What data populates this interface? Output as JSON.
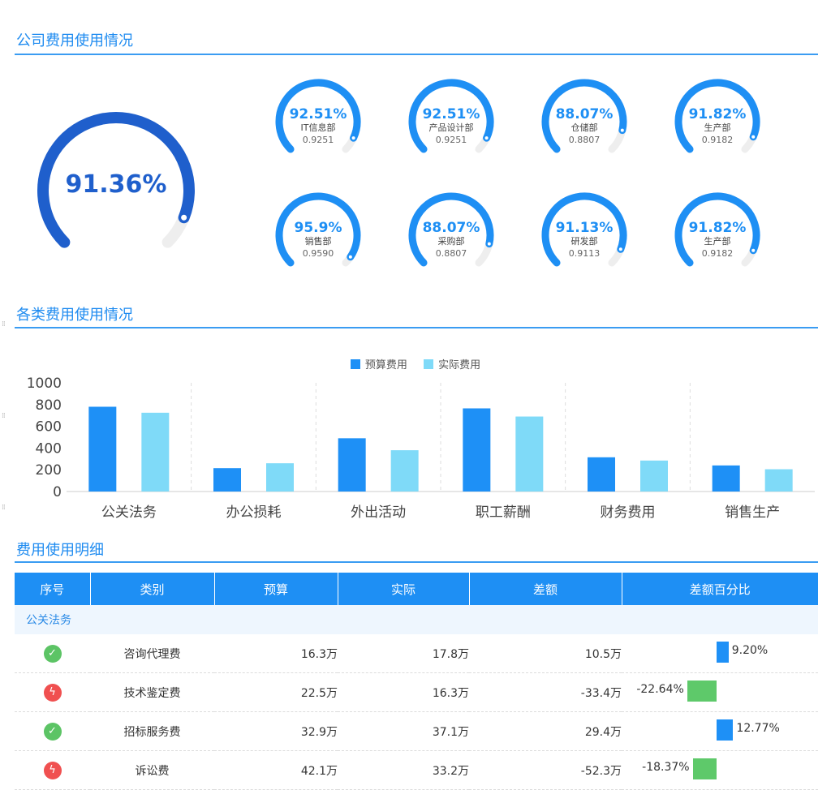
{
  "sections": {
    "company_title": "公司费用使用情况",
    "category_title": "各类费用使用情况",
    "detail_title": "费用使用明细"
  },
  "overall_gauge": {
    "label": "91.36%",
    "value": 0.9136,
    "color": "#1f5fcc"
  },
  "dept_gauges": [
    {
      "pct": "92.51%",
      "dept": "IT信息部",
      "value": "0.9251"
    },
    {
      "pct": "92.51%",
      "dept": "产品设计部",
      "value": "0.9251"
    },
    {
      "pct": "88.07%",
      "dept": "仓储部",
      "value": "0.8807"
    },
    {
      "pct": "91.82%",
      "dept": "生产部",
      "value": "0.9182"
    },
    {
      "pct": "95.9%",
      "dept": "销售部",
      "value": "0.9590"
    },
    {
      "pct": "88.07%",
      "dept": "采购部",
      "value": "0.8807"
    },
    {
      "pct": "91.13%",
      "dept": "研发部",
      "value": "0.9113"
    },
    {
      "pct": "91.82%",
      "dept": "生产部",
      "value": "0.9182"
    }
  ],
  "colors": {
    "accent": "#1e8ff4",
    "gauge_track": "#eeeeee",
    "bar_budget": "#1e90f6",
    "bar_actual": "#7fdaf8",
    "positive": "#1e90f6",
    "negative": "#5ec96a"
  },
  "chart_data": {
    "type": "bar",
    "categories": [
      "公关法务",
      "办公损耗",
      "外出活动",
      "职工薪酬",
      "财务费用",
      "销售生产"
    ],
    "series": [
      {
        "name": "预算费用",
        "values": [
          780,
          215,
          490,
          765,
          315,
          240
        ]
      },
      {
        "name": "实际费用",
        "values": [
          725,
          260,
          380,
          690,
          285,
          205
        ]
      }
    ],
    "ylim": [
      0,
      1000
    ],
    "yticks": [
      "0",
      "200",
      "400",
      "600",
      "800",
      "1000"
    ],
    "legend_position": "top-center"
  },
  "table": {
    "headers": [
      "序号",
      "类别",
      "预算",
      "实际",
      "差额",
      "差额百分比"
    ],
    "group": "公关法务",
    "rows": [
      {
        "status": "ok",
        "category": "咨询代理费",
        "budget": "16.3万",
        "actual": "17.8万",
        "diff": "10.5万",
        "pct_text": "9.20%",
        "pct": 9.2
      },
      {
        "status": "bad",
        "category": "技术鉴定费",
        "budget": "22.5万",
        "actual": "16.3万",
        "diff": "-33.4万",
        "pct_text": "-22.64%",
        "pct": -22.64
      },
      {
        "status": "ok",
        "category": "招标服务费",
        "budget": "32.9万",
        "actual": "37.1万",
        "diff": "29.4万",
        "pct_text": "12.77%",
        "pct": 12.77
      },
      {
        "status": "bad",
        "category": "诉讼费",
        "budget": "42.1万",
        "actual": "33.2万",
        "diff": "-52.3万",
        "pct_text": "-18.37%",
        "pct": -18.37
      }
    ]
  }
}
